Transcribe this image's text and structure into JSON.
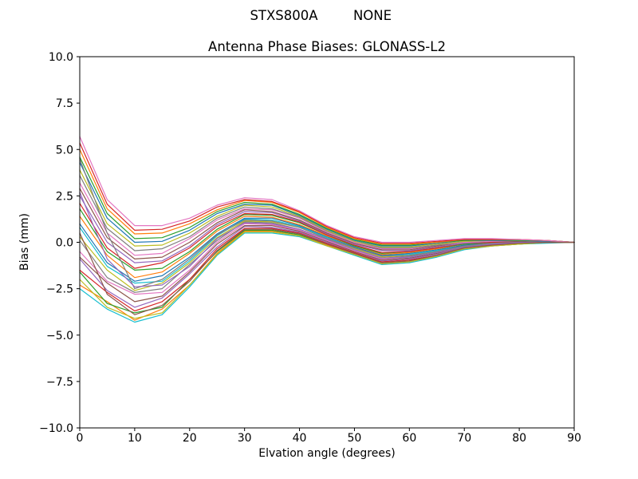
{
  "header": {
    "left_text": "STXS800A",
    "right_text": "NONE"
  },
  "chart_data": {
    "type": "line",
    "suptitle": "STXS800A        NONE",
    "title": "Antenna Phase Biases: GLONASS-L2",
    "xlabel": "Elvation angle (degrees)",
    "ylabel": "Bias (mm)",
    "xlim": [
      0,
      90
    ],
    "ylim": [
      -10,
      10
    ],
    "grid": false,
    "legend": "none",
    "frame_color": "#000000",
    "background_color": "#ffffff",
    "xticks": [
      0,
      10,
      20,
      30,
      40,
      50,
      60,
      70,
      80,
      90
    ],
    "yticks": [
      -10,
      -7.5,
      -5,
      -2.5,
      0,
      2.5,
      5,
      7.5,
      10
    ],
    "ytick_labels": [
      "−10.0",
      "−7.5",
      "−5.0",
      "−2.5",
      "0.0",
      "2.5",
      "5.0",
      "7.5",
      "10.0"
    ],
    "x": [
      0,
      5,
      10,
      15,
      20,
      25,
      30,
      35,
      40,
      45,
      50,
      55,
      60,
      65,
      70,
      75,
      80,
      85,
      90
    ],
    "series": [
      {
        "color": "#17becf",
        "y": [
          -2.5,
          -3.6,
          -4.3,
          -3.9,
          -2.4,
          -0.7,
          0.5,
          0.5,
          0.3,
          -0.2,
          -0.7,
          -1.2,
          -1.1,
          -0.8,
          -0.4,
          -0.2,
          -0.1,
          -0.05,
          0
        ]
      },
      {
        "color": "#ff7f0e",
        "y": [
          -2.3,
          -3.2,
          -4.2,
          -3.6,
          -2.3,
          -0.6,
          0.6,
          0.6,
          0.4,
          -0.15,
          -0.65,
          -1.15,
          -1.05,
          -0.75,
          -0.35,
          -0.2,
          -0.1,
          0,
          0
        ]
      },
      {
        "color": "#2ca02c",
        "y": [
          -1.6,
          -3.3,
          -3.8,
          -3.5,
          -2.0,
          -0.5,
          0.65,
          0.65,
          0.4,
          -0.1,
          -0.6,
          -1.1,
          -1.0,
          -0.7,
          -0.35,
          -0.15,
          -0.1,
          0,
          0
        ]
      },
      {
        "color": "#d62728",
        "y": [
          -1.5,
          -2.7,
          -3.7,
          -3.2,
          -2.0,
          -0.35,
          0.75,
          0.75,
          0.5,
          -0.05,
          -0.55,
          -1.05,
          -0.95,
          -0.7,
          -0.3,
          -0.15,
          -0.05,
          0,
          0
        ]
      },
      {
        "color": "#9467bd",
        "y": [
          -0.9,
          -2.6,
          -3.5,
          -3.0,
          -1.7,
          -0.25,
          0.85,
          0.8,
          0.55,
          0,
          -0.5,
          -1.0,
          -0.9,
          -0.65,
          -0.3,
          -0.1,
          -0.05,
          0,
          0
        ]
      },
      {
        "color": "#8c564b",
        "y": [
          -0.8,
          -2.2,
          -3.2,
          -2.9,
          -1.6,
          -0.1,
          0.9,
          0.9,
          0.6,
          0.05,
          -0.5,
          -0.95,
          -0.85,
          -0.6,
          -0.25,
          -0.1,
          -0.05,
          0,
          0
        ]
      },
      {
        "color": "#e377c2",
        "y": [
          -0.5,
          -2.1,
          -2.8,
          -2.7,
          -1.5,
          0,
          1.0,
          0.95,
          0.65,
          0.1,
          -0.45,
          -0.9,
          -0.8,
          -0.55,
          -0.25,
          -0.1,
          -0.05,
          0,
          0
        ]
      },
      {
        "color": "#7f7f7f",
        "y": [
          0.1,
          -1.9,
          -2.7,
          -2.5,
          -1.2,
          0.1,
          1.1,
          1.05,
          0.7,
          0.15,
          -0.4,
          -0.85,
          -0.75,
          -0.55,
          -0.2,
          -0.1,
          0,
          0,
          0
        ]
      },
      {
        "color": "#bcbd22",
        "y": [
          0.3,
          -1.5,
          -2.6,
          -2.2,
          -1.1,
          0.25,
          1.15,
          1.1,
          0.8,
          0.2,
          -0.35,
          -0.8,
          -0.7,
          -0.5,
          -0.2,
          -0.05,
          0,
          0,
          0
        ]
      },
      {
        "color": "#17becf",
        "y": [
          0.8,
          -1.3,
          -2.2,
          -2.1,
          -1.0,
          0.35,
          1.25,
          1.2,
          0.85,
          0.25,
          -0.3,
          -0.7,
          -0.65,
          -0.45,
          -0.15,
          -0.05,
          0,
          0,
          0
        ]
      },
      {
        "color": "#1f77b4",
        "y": [
          1.0,
          -1.1,
          -2.1,
          -1.8,
          -0.8,
          0.45,
          1.3,
          1.3,
          0.9,
          0.3,
          -0.25,
          -0.7,
          -0.6,
          -0.4,
          -0.15,
          0,
          0,
          0,
          0
        ]
      },
      {
        "color": "#ff7f0e",
        "y": [
          1.4,
          -0.7,
          -1.9,
          -1.6,
          -0.6,
          0.6,
          1.4,
          1.35,
          0.95,
          0.35,
          -0.2,
          -0.65,
          -0.55,
          -0.35,
          -0.1,
          0,
          0,
          0,
          0
        ]
      },
      {
        "color": "#2ca02c",
        "y": [
          1.8,
          -0.5,
          -1.5,
          -1.4,
          -0.5,
          0.7,
          1.5,
          1.45,
          1.05,
          0.4,
          -0.2,
          -0.6,
          -0.5,
          -0.3,
          -0.1,
          0,
          0.05,
          0,
          0
        ]
      },
      {
        "color": "#d62728",
        "y": [
          2.1,
          -0.3,
          -1.4,
          -1.1,
          -0.3,
          0.85,
          1.55,
          1.5,
          1.1,
          0.4,
          -0.15,
          -0.55,
          -0.5,
          -0.3,
          -0.05,
          0,
          0.05,
          0.05,
          0
        ]
      },
      {
        "color": "#9467bd",
        "y": [
          2.5,
          0,
          -1.1,
          -1.0,
          -0.2,
          0.95,
          1.65,
          1.6,
          1.15,
          0.45,
          -0.1,
          -0.45,
          -0.45,
          -0.25,
          -0.05,
          0.05,
          0.05,
          0.05,
          0
        ]
      },
      {
        "color": "#8c564b",
        "y": [
          2.9,
          0.25,
          -0.9,
          -0.8,
          0,
          1.05,
          1.75,
          1.65,
          1.2,
          0.5,
          -0.05,
          -0.4,
          -0.4,
          -0.2,
          0,
          0.05,
          0.05,
          0.05,
          0
        ]
      },
      {
        "color": "#e377c2",
        "y": [
          3.2,
          0.5,
          -0.7,
          -0.6,
          0.2,
          1.2,
          1.8,
          1.75,
          1.3,
          0.55,
          0,
          -0.35,
          -0.35,
          -0.15,
          0,
          0.05,
          0.1,
          0.05,
          0
        ]
      },
      {
        "color": "#7f7f7f",
        "y": [
          3.6,
          0.75,
          -0.45,
          -0.35,
          0.3,
          1.3,
          1.9,
          1.8,
          1.35,
          0.6,
          0.05,
          -0.3,
          -0.3,
          -0.15,
          0.05,
          0.1,
          0.1,
          0.05,
          0
        ]
      },
      {
        "color": "#bcbd22",
        "y": [
          3.9,
          1.0,
          -0.2,
          -0.15,
          0.5,
          1.4,
          2.0,
          1.9,
          1.4,
          0.65,
          0.05,
          -0.25,
          -0.25,
          -0.1,
          0.05,
          0.1,
          0.1,
          0.05,
          0
        ]
      },
      {
        "color": "#1f77b4",
        "y": [
          4.3,
          1.3,
          0,
          0.05,
          0.65,
          1.55,
          2.05,
          2.0,
          1.45,
          0.7,
          0.1,
          -0.2,
          -0.2,
          -0.05,
          0.1,
          0.1,
          0.1,
          0.05,
          0
        ]
      },
      {
        "color": "#2ca02c",
        "y": [
          4.6,
          1.55,
          0.2,
          0.25,
          0.8,
          1.65,
          2.15,
          2.05,
          1.5,
          0.75,
          0.15,
          -0.15,
          -0.15,
          0,
          0.1,
          0.15,
          0.1,
          0.1,
          0
        ]
      },
      {
        "color": "#ff7f0e",
        "y": [
          5.0,
          1.8,
          0.45,
          0.5,
          1.0,
          1.75,
          2.25,
          2.15,
          1.6,
          0.8,
          0.2,
          -0.1,
          -0.1,
          0,
          0.15,
          0.15,
          0.15,
          0.1,
          0
        ]
      },
      {
        "color": "#d62728",
        "y": [
          5.35,
          2.05,
          0.65,
          0.7,
          1.15,
          1.9,
          2.3,
          2.2,
          1.65,
          0.85,
          0.25,
          -0.05,
          -0.05,
          0.05,
          0.15,
          0.15,
          0.15,
          0.1,
          0
        ]
      },
      {
        "color": "#e377c2",
        "y": [
          5.7,
          2.3,
          0.9,
          0.9,
          1.3,
          2.0,
          2.4,
          2.3,
          1.7,
          0.9,
          0.3,
          0,
          0,
          0.1,
          0.2,
          0.2,
          0.15,
          0.1,
          0
        ]
      },
      {
        "color": "#7f7f7f",
        "y": [
          4.5,
          0.5,
          -2.5,
          -2.0,
          -0.9,
          0.4,
          1.2,
          1.15,
          0.8,
          0.2,
          -0.3,
          -0.75,
          -0.7,
          -0.5,
          -0.2,
          -0.05,
          0,
          0,
          0
        ]
      },
      {
        "color": "#bcbd22",
        "y": [
          -2.0,
          -3.5,
          -4.1,
          -3.8,
          -2.3,
          -0.65,
          0.55,
          0.55,
          0.35,
          -0.2,
          -0.65,
          -1.15,
          -1.05,
          -0.75,
          -0.35,
          -0.2,
          -0.1,
          0,
          0
        ]
      },
      {
        "color": "#9467bd",
        "y": [
          2.7,
          -0.9,
          -2.4,
          -2.3,
          -1.3,
          0.2,
          1.05,
          1.0,
          0.7,
          0.15,
          -0.4,
          -0.85,
          -0.8,
          -0.55,
          -0.25,
          -0.1,
          0,
          0,
          0
        ]
      },
      {
        "color": "#8c564b",
        "y": [
          0.5,
          -2.8,
          -3.9,
          -3.4,
          -2.1,
          -0.45,
          0.7,
          0.7,
          0.45,
          -0.1,
          -0.6,
          -1.1,
          -1.0,
          -0.7,
          -0.3,
          -0.15,
          -0.05,
          0,
          0
        ]
      }
    ]
  }
}
